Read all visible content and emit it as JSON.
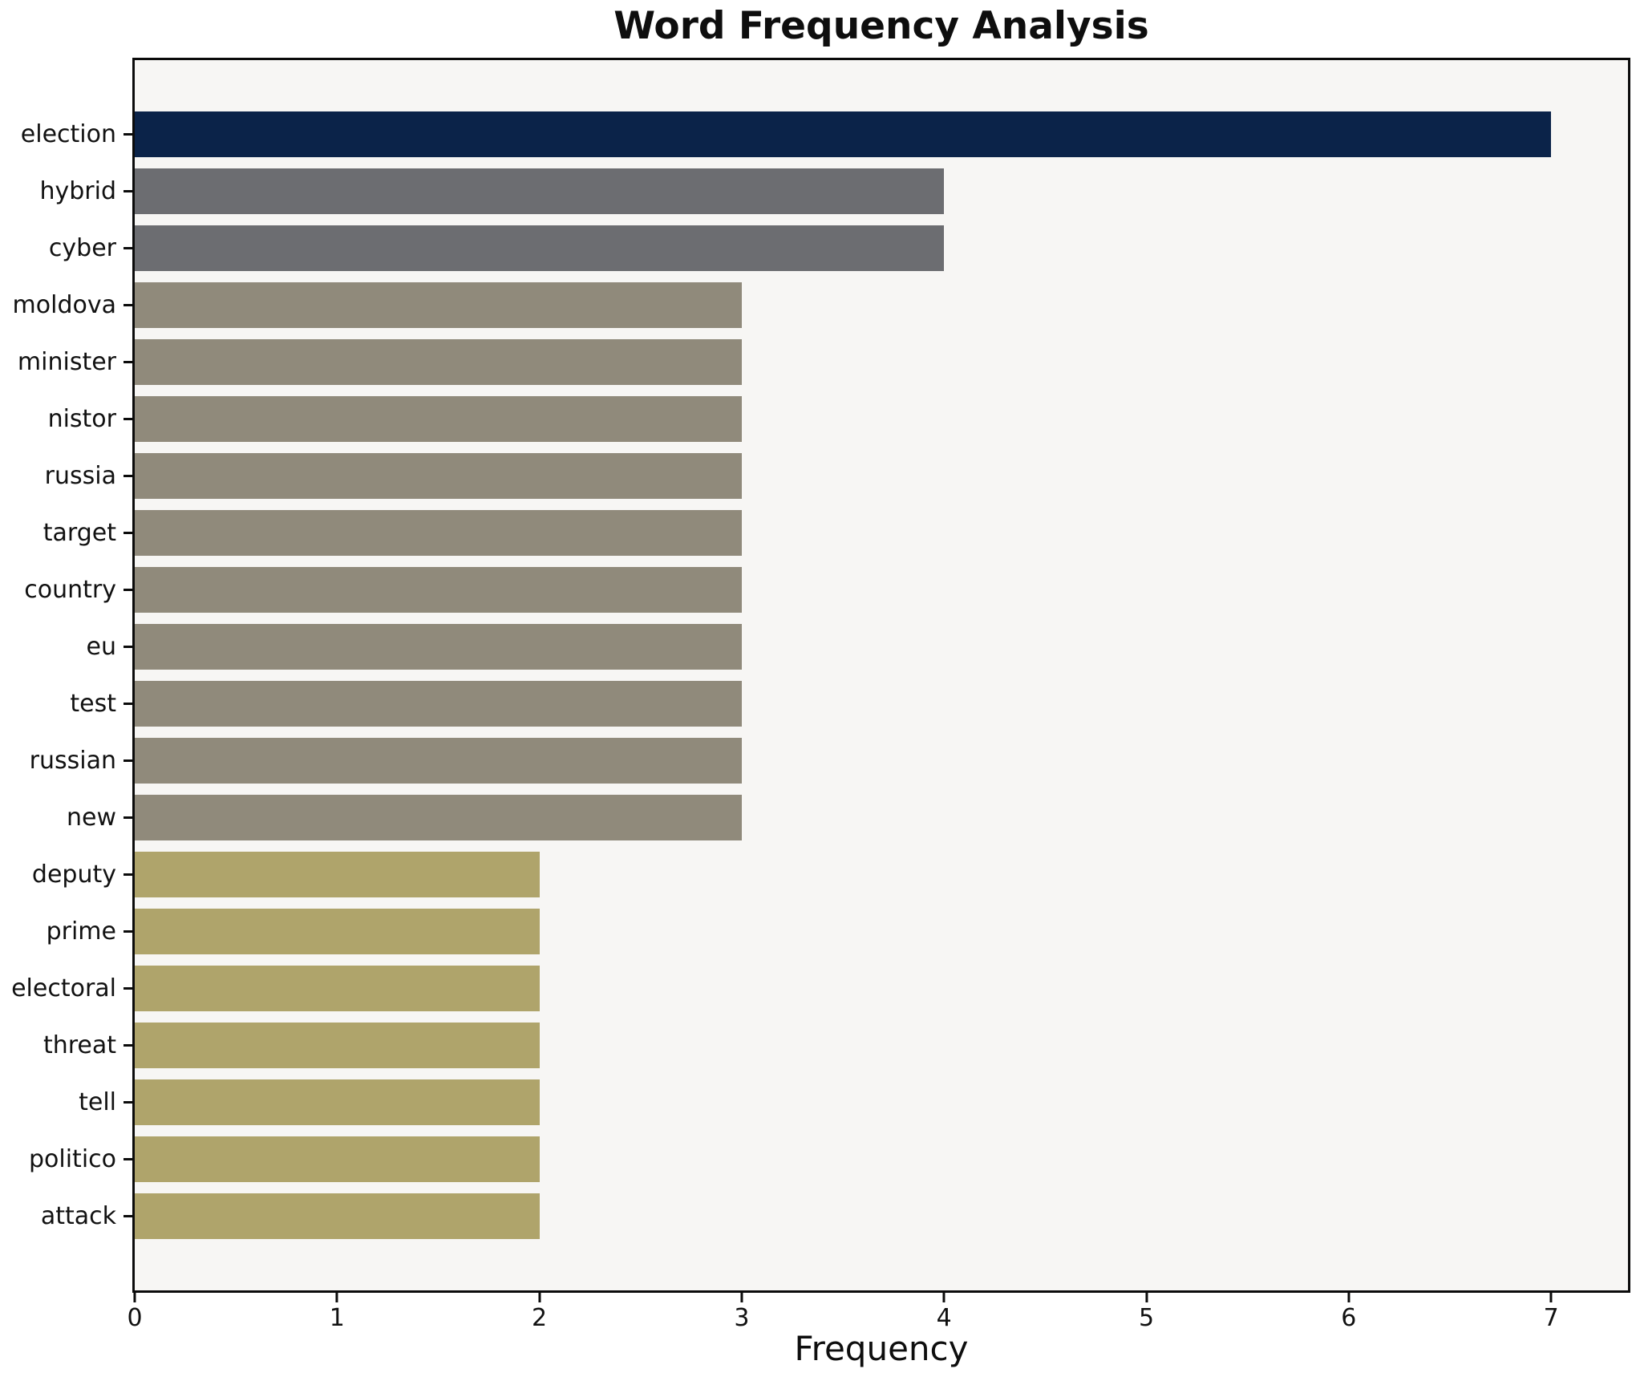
{
  "chart_data": {
    "type": "bar",
    "orientation": "horizontal",
    "title": "Word Frequency Analysis",
    "xlabel": "Frequency",
    "ylabel": "",
    "categories": [
      "election",
      "hybrid",
      "cyber",
      "moldova",
      "minister",
      "nistor",
      "russia",
      "target",
      "country",
      "eu",
      "test",
      "russian",
      "new",
      "deputy",
      "prime",
      "electoral",
      "threat",
      "tell",
      "politico",
      "attack"
    ],
    "values": [
      7,
      4,
      4,
      3,
      3,
      3,
      3,
      3,
      3,
      3,
      3,
      3,
      3,
      2,
      2,
      2,
      2,
      2,
      2,
      2
    ],
    "bar_colors": [
      "#0b2349",
      "#6c6d71",
      "#6c6d71",
      "#908a7b",
      "#908a7b",
      "#908a7b",
      "#908a7b",
      "#908a7b",
      "#908a7b",
      "#908a7b",
      "#908a7b",
      "#908a7b",
      "#908a7b",
      "#afa46b",
      "#afa46b",
      "#afa46b",
      "#afa46b",
      "#afa46b",
      "#afa46b",
      "#afa46b"
    ],
    "xticks": [
      0,
      1,
      2,
      3,
      4,
      5,
      6,
      7
    ],
    "xlim": [
      0,
      7.38
    ],
    "grid": false,
    "legend": null,
    "plot_background": "#f7f6f4",
    "figure_background": "#ffffff",
    "spine_color": "#0b0b0b",
    "text_color": "#111111"
  }
}
